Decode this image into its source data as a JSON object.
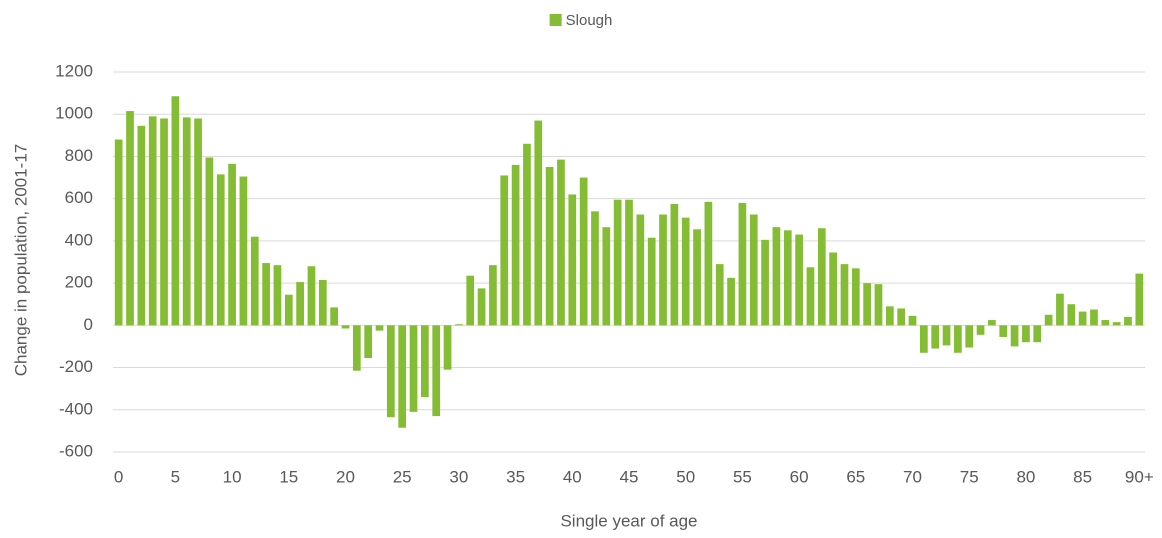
{
  "chart_data": {
    "type": "bar",
    "y_label": "Change in population, 2001-17",
    "x_label": "Single year of age",
    "categories": [
      "0",
      null,
      null,
      null,
      null,
      "5",
      null,
      null,
      null,
      null,
      "10",
      null,
      null,
      null,
      null,
      "15",
      null,
      null,
      null,
      null,
      "20",
      null,
      null,
      null,
      null,
      "25",
      null,
      null,
      null,
      null,
      "30",
      null,
      null,
      null,
      null,
      "35",
      null,
      null,
      null,
      null,
      "40",
      null,
      null,
      null,
      null,
      "45",
      null,
      null,
      null,
      null,
      "50",
      null,
      null,
      null,
      null,
      "55",
      null,
      null,
      null,
      null,
      "60",
      null,
      null,
      null,
      null,
      "65",
      null,
      null,
      null,
      null,
      "70",
      null,
      null,
      null,
      null,
      "75",
      null,
      null,
      null,
      null,
      "80",
      null,
      null,
      null,
      null,
      "85",
      null,
      null,
      null,
      null,
      "90+"
    ],
    "series": [
      {
        "name": "Slough",
        "color": "#84bc34",
        "values": [
          880,
          1015,
          945,
          990,
          980,
          1085,
          985,
          980,
          795,
          715,
          765,
          705,
          420,
          295,
          285,
          145,
          205,
          280,
          215,
          85,
          -15,
          -215,
          -155,
          -25,
          -435,
          -485,
          -410,
          -340,
          -430,
          -210,
          5,
          235,
          175,
          285,
          710,
          760,
          860,
          970,
          750,
          785,
          620,
          700,
          540,
          465,
          595,
          595,
          525,
          415,
          525,
          575,
          510,
          455,
          585,
          290,
          225,
          580,
          525,
          405,
          465,
          450,
          430,
          275,
          460,
          345,
          290,
          270,
          200,
          195,
          90,
          80,
          45,
          -130,
          -110,
          -95,
          -130,
          -105,
          -45,
          25,
          -55,
          -100,
          -80,
          -80,
          50,
          150,
          100,
          65,
          75,
          25,
          15,
          40,
          245
        ]
      }
    ],
    "ylim": [
      -600,
      1200
    ],
    "yticks": [
      -600,
      -400,
      -200,
      0,
      200,
      400,
      600,
      800,
      1000,
      1200
    ],
    "grid": true,
    "legend": "top"
  }
}
